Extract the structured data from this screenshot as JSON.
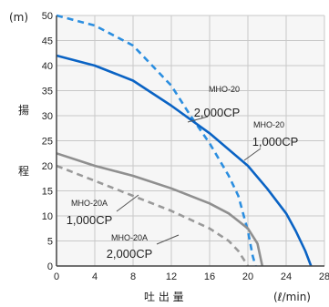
{
  "chart_data": {
    "type": "line",
    "y_unit": "(m)",
    "ylabel_chars": [
      "揚",
      "程"
    ],
    "xlabel": "吐 出 量",
    "x_unit": "(ℓ/min)",
    "xlim": [
      0,
      28
    ],
    "ylim": [
      0,
      50
    ],
    "x_ticks": [
      0,
      4,
      8,
      12,
      16,
      20,
      24,
      28
    ],
    "y_ticks": [
      0,
      5,
      10,
      15,
      20,
      25,
      30,
      35,
      40,
      45,
      50
    ],
    "grid": true,
    "series": [
      {
        "name": "MHO-20 2,000CP",
        "color": "#2b8ee0",
        "style": "dashed",
        "x": [
          0,
          4,
          8,
          12,
          14,
          16,
          18,
          19,
          20,
          20.5,
          20.8
        ],
        "y": [
          50,
          48,
          44,
          36,
          30,
          24.5,
          18,
          14,
          7,
          2,
          0
        ]
      },
      {
        "name": "MHO-20 1,000CP",
        "color": "#0a63c4",
        "style": "solid",
        "x": [
          0,
          4,
          8,
          12,
          16,
          20,
          22,
          24,
          25,
          26,
          26.6
        ],
        "y": [
          42,
          40,
          37,
          32,
          26.5,
          20,
          15.5,
          10.5,
          7,
          3,
          0
        ]
      },
      {
        "name": "MHO-20A 1,000CP",
        "color": "#8f8f8f",
        "style": "solid",
        "x": [
          0,
          4,
          8,
          12,
          16,
          18,
          20,
          21,
          21.5
        ],
        "y": [
          22.5,
          20,
          18,
          15.5,
          12.5,
          10.5,
          7.5,
          4.5,
          0
        ]
      },
      {
        "name": "MHO-20A 2,000CP",
        "color": "#9a9a9a",
        "style": "dashed",
        "x": [
          0,
          4,
          8,
          12,
          16,
          18,
          19,
          20
        ],
        "y": [
          20,
          17,
          14,
          11,
          7.5,
          5,
          3,
          0
        ]
      }
    ],
    "annotations": [
      {
        "line1": "MHO-20",
        "line2": "2,000CP",
        "series": 0
      },
      {
        "line1": "MHO-20",
        "line2": "1,000CP",
        "series": 1
      },
      {
        "line1": "MHO-20A",
        "line2": "1,000CP",
        "series": 2
      },
      {
        "line1": "MHO-20A",
        "line2": "2,000CP",
        "series": 3
      }
    ]
  }
}
